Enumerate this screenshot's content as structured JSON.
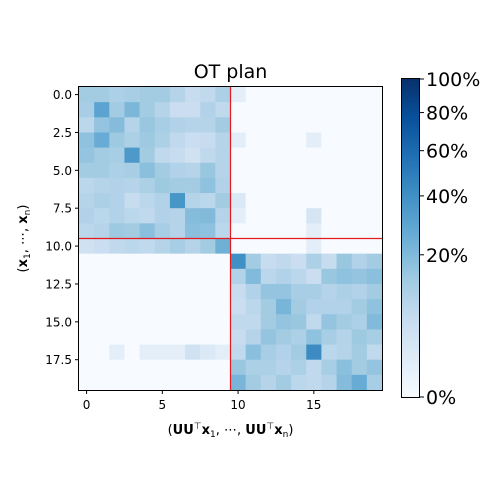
{
  "chart_data": {
    "type": "heatmap",
    "title": "OT plan",
    "xlabel": "(UU⊤x₁, ⋯, UU⊤xₙ)",
    "ylabel": "(x₁, ⋯, xₙ)",
    "x_ticks": [
      0,
      5,
      10,
      15
    ],
    "y_ticks": [
      0.0,
      2.5,
      5.0,
      7.5,
      10.0,
      12.5,
      15.0,
      17.5
    ],
    "x_tick_labels": [
      "0",
      "5",
      "10",
      "15"
    ],
    "y_tick_labels": [
      "0.0",
      "2.5",
      "5.0",
      "7.5",
      "10.0",
      "12.5",
      "15.0",
      "17.5"
    ],
    "colorbar": {
      "tick_values": [
        0.0,
        0.2,
        0.4,
        0.6,
        0.8,
        1.0
      ],
      "tick_labels": [
        "0%",
        "20%",
        "40%",
        "60%",
        "80%",
        "100%"
      ],
      "scale": "power",
      "gamma": 0.5,
      "colormap": "Blues",
      "colors": [
        "#f7fbff",
        "#deebf7",
        "#c6dbef",
        "#9ecae1",
        "#6baed6",
        "#4292c6",
        "#2171b5",
        "#08519c",
        "#08306b"
      ]
    },
    "divider": {
      "position": 9.5,
      "color": "#e41a1c"
    },
    "rows": 20,
    "cols": 20,
    "values": [
      [
        0.13,
        0.13,
        0.11,
        0.12,
        0.13,
        0.13,
        0.09,
        0.06,
        0.07,
        0.11,
        0.01,
        0.0,
        0.0,
        0.0,
        0.0,
        0.0,
        0.0,
        0.0,
        0.0,
        0.0
      ],
      [
        0.12,
        0.3,
        0.13,
        0.21,
        0.13,
        0.09,
        0.05,
        0.05,
        0.1,
        0.07,
        0.0,
        0.0,
        0.0,
        0.0,
        0.0,
        0.0,
        0.0,
        0.0,
        0.0,
        0.0
      ],
      [
        0.08,
        0.16,
        0.19,
        0.09,
        0.15,
        0.12,
        0.1,
        0.09,
        0.09,
        0.13,
        0.0,
        0.0,
        0.0,
        0.0,
        0.0,
        0.0,
        0.0,
        0.0,
        0.0,
        0.0
      ],
      [
        0.17,
        0.26,
        0.14,
        0.11,
        0.14,
        0.11,
        0.07,
        0.05,
        0.06,
        0.09,
        0.01,
        0.0,
        0.0,
        0.0,
        0.0,
        0.01,
        0.0,
        0.0,
        0.0,
        0.0
      ],
      [
        0.16,
        0.13,
        0.12,
        0.35,
        0.13,
        0.07,
        0.06,
        0.04,
        0.07,
        0.09,
        0.0,
        0.0,
        0.0,
        0.0,
        0.0,
        0.0,
        0.0,
        0.0,
        0.0,
        0.0
      ],
      [
        0.13,
        0.13,
        0.11,
        0.12,
        0.18,
        0.13,
        0.1,
        0.09,
        0.15,
        0.09,
        0.0,
        0.0,
        0.0,
        0.0,
        0.0,
        0.0,
        0.0,
        0.0,
        0.0,
        0.0
      ],
      [
        0.08,
        0.09,
        0.1,
        0.09,
        0.11,
        0.14,
        0.13,
        0.13,
        0.17,
        0.1,
        0.0,
        0.0,
        0.0,
        0.0,
        0.0,
        0.0,
        0.0,
        0.0,
        0.0,
        0.0
      ],
      [
        0.09,
        0.11,
        0.1,
        0.06,
        0.08,
        0.1,
        0.37,
        0.09,
        0.08,
        0.13,
        0.02,
        0.0,
        0.0,
        0.0,
        0.0,
        0.0,
        0.0,
        0.0,
        0.0,
        0.0
      ],
      [
        0.1,
        0.08,
        0.1,
        0.08,
        0.07,
        0.1,
        0.09,
        0.19,
        0.2,
        0.09,
        0.01,
        0.0,
        0.0,
        0.0,
        0.0,
        0.03,
        0.0,
        0.0,
        0.0,
        0.0
      ],
      [
        0.08,
        0.09,
        0.14,
        0.13,
        0.18,
        0.12,
        0.09,
        0.18,
        0.17,
        0.08,
        0.0,
        0.0,
        0.0,
        0.0,
        0.0,
        0.01,
        0.0,
        0.0,
        0.0,
        0.0
      ],
      [
        0.04,
        0.05,
        0.07,
        0.08,
        0.07,
        0.09,
        0.12,
        0.09,
        0.13,
        0.24,
        0.0,
        0.0,
        0.0,
        0.0,
        0.0,
        0.01,
        0.0,
        0.0,
        0.0,
        0.0
      ],
      [
        0.0,
        0.0,
        0.0,
        0.0,
        0.0,
        0.0,
        0.0,
        0.0,
        0.0,
        0.0,
        0.4,
        0.13,
        0.06,
        0.07,
        0.05,
        0.11,
        0.06,
        0.15,
        0.1,
        0.13
      ],
      [
        0.0,
        0.0,
        0.0,
        0.0,
        0.0,
        0.0,
        0.0,
        0.0,
        0.0,
        0.0,
        0.1,
        0.2,
        0.08,
        0.1,
        0.08,
        0.05,
        0.15,
        0.17,
        0.16,
        0.18
      ],
      [
        0.0,
        0.0,
        0.0,
        0.0,
        0.0,
        0.0,
        0.0,
        0.0,
        0.0,
        0.0,
        0.06,
        0.1,
        0.16,
        0.16,
        0.12,
        0.12,
        0.09,
        0.11,
        0.1,
        0.13
      ],
      [
        0.0,
        0.0,
        0.0,
        0.0,
        0.0,
        0.0,
        0.0,
        0.0,
        0.0,
        0.0,
        0.05,
        0.08,
        0.13,
        0.22,
        0.13,
        0.1,
        0.1,
        0.1,
        0.13,
        0.17
      ],
      [
        0.0,
        0.0,
        0.0,
        0.0,
        0.0,
        0.0,
        0.0,
        0.0,
        0.0,
        0.0,
        0.07,
        0.07,
        0.13,
        0.16,
        0.15,
        0.07,
        0.16,
        0.13,
        0.11,
        0.2
      ],
      [
        0.0,
        0.0,
        0.0,
        0.0,
        0.0,
        0.0,
        0.0,
        0.0,
        0.0,
        0.0,
        0.06,
        0.09,
        0.16,
        0.13,
        0.11,
        0.17,
        0.12,
        0.09,
        0.14,
        0.12
      ],
      [
        0.0,
        0.0,
        0.01,
        0.0,
        0.01,
        0.01,
        0.01,
        0.04,
        0.02,
        0.01,
        0.07,
        0.18,
        0.12,
        0.1,
        0.13,
        0.42,
        0.08,
        0.09,
        0.13,
        0.07
      ],
      [
        0.0,
        0.0,
        0.0,
        0.0,
        0.0,
        0.0,
        0.0,
        0.0,
        0.0,
        0.0,
        0.15,
        0.11,
        0.11,
        0.09,
        0.11,
        0.07,
        0.12,
        0.18,
        0.13,
        0.16
      ],
      [
        0.0,
        0.0,
        0.0,
        0.0,
        0.0,
        0.0,
        0.0,
        0.0,
        0.0,
        0.0,
        0.22,
        0.13,
        0.09,
        0.13,
        0.08,
        0.07,
        0.09,
        0.19,
        0.26,
        0.12
      ]
    ]
  }
}
